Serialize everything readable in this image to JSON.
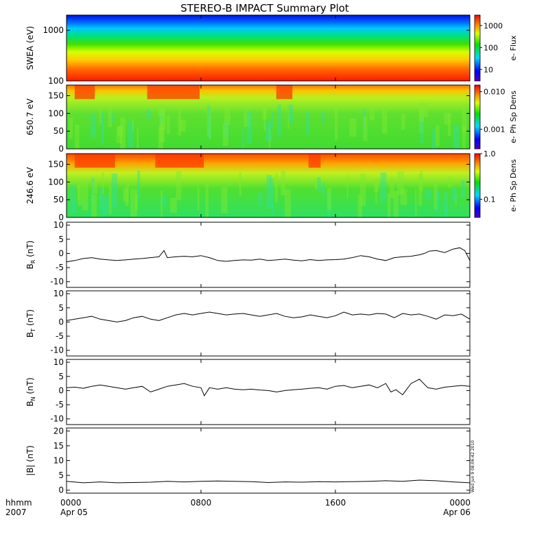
{
  "title": "STEREO-B IMPACT Summary Plot",
  "timestamp_stamp": "Wed Jun 9 08:06:42 2010",
  "x_axis": {
    "ticks": [
      {
        "hour": 0,
        "line1": "0000",
        "line2": "Apr 05"
      },
      {
        "hour": 8,
        "line1": "0800",
        "line2": ""
      },
      {
        "hour": 16,
        "line1": "1600",
        "line2": ""
      },
      {
        "hour": 24,
        "line1": "0000",
        "line2": "Apr 06"
      }
    ],
    "left_label_line1": "hhmm",
    "left_label_line2": "2007"
  },
  "chart_data": [
    {
      "id": "swea",
      "type": "heatmap",
      "ylabel": "SWEA (eV)",
      "yscale": "log",
      "ylim": [
        100,
        2000
      ],
      "yticks": [
        {
          "v": 100,
          "label": "100"
        },
        {
          "v": 1000,
          "label": "1000"
        }
      ],
      "colorbar": {
        "label": "e- Flux",
        "scale": "log",
        "range": [
          3,
          3000
        ],
        "ticks": [
          {
            "v": 10,
            "label": "10"
          },
          {
            "v": 100,
            "label": "100"
          },
          {
            "v": 1000,
            "label": "1000"
          }
        ]
      },
      "description_colors": "red at low energy to blue at high energy"
    },
    {
      "id": "pad650",
      "type": "heatmap",
      "ylabel": "650.7 eV",
      "ylim": [
        0,
        180
      ],
      "yticks": [
        {
          "v": 0,
          "label": "0"
        },
        {
          "v": 50,
          "label": "50"
        },
        {
          "v": 100,
          "label": "100"
        },
        {
          "v": 150,
          "label": "150"
        }
      ],
      "colorbar": {
        "label": "e- Ph Sp Dens",
        "scale": "log",
        "range": [
          0.0003,
          0.015
        ],
        "ticks": [
          {
            "v": 0.001,
            "label": "0.001"
          },
          {
            "v": 0.01,
            "label": "0.010"
          }
        ]
      }
    },
    {
      "id": "pad246",
      "type": "heatmap",
      "ylabel": "246.6 eV",
      "ylim": [
        0,
        180
      ],
      "yticks": [
        {
          "v": 0,
          "label": "0"
        },
        {
          "v": 50,
          "label": "50"
        },
        {
          "v": 100,
          "label": "100"
        },
        {
          "v": 150,
          "label": "150"
        }
      ],
      "colorbar": {
        "label": "e- Ph Sp Dens",
        "scale": "log",
        "range": [
          0.04,
          1.0
        ],
        "ticks": [
          {
            "v": 0.1,
            "label": "0.1"
          },
          {
            "v": 1.0,
            "label": "1.0"
          }
        ]
      }
    },
    {
      "id": "br",
      "type": "line",
      "ylabel": "B",
      "ysub": "R",
      "yunit": "(nT)",
      "ylim": [
        -12,
        11
      ],
      "yticks": [
        {
          "v": -10,
          "label": "-10"
        },
        {
          "v": -5,
          "label": "-5"
        },
        {
          "v": 0,
          "label": "0"
        },
        {
          "v": 5,
          "label": "5"
        },
        {
          "v": 10,
          "label": "10"
        }
      ],
      "x": [
        0,
        0.5,
        1,
        1.5,
        2,
        2.5,
        3,
        3.5,
        4,
        4.5,
        5,
        5.5,
        5.8,
        6,
        6.5,
        7,
        7.5,
        8,
        8.5,
        9,
        9.5,
        10,
        10.5,
        11,
        11.5,
        12,
        12.5,
        13,
        13.5,
        14,
        14.5,
        15,
        15.5,
        16,
        16.5,
        17,
        17.5,
        18,
        18.5,
        19,
        19.5,
        20,
        20.5,
        21,
        21.3,
        21.6,
        22,
        22.5,
        23,
        23.4,
        23.7,
        24
      ],
      "y": [
        -3,
        -2.5,
        -1.8,
        -1.5,
        -2,
        -2.3,
        -2.5,
        -2.3,
        -2,
        -1.8,
        -1.5,
        -1.2,
        1,
        -1.5,
        -1.2,
        -1,
        -1.2,
        -0.8,
        -1.5,
        -2.5,
        -2.8,
        -2.5,
        -2.3,
        -2.4,
        -2,
        -2.5,
        -2.3,
        -2,
        -2.4,
        -2.6,
        -2.2,
        -2.5,
        -2.3,
        -2.2,
        -2,
        -1.5,
        -0.8,
        -1.2,
        -2,
        -2.5,
        -1.5,
        -1.2,
        -1,
        -0.5,
        0,
        0.8,
        1,
        0.3,
        1.5,
        2,
        1,
        -2.5
      ]
    },
    {
      "id": "bt",
      "type": "line",
      "ylabel": "B",
      "ysub": "T",
      "yunit": "(nT)",
      "ylim": [
        -12,
        11
      ],
      "yticks": [
        {
          "v": -10,
          "label": "-10"
        },
        {
          "v": -5,
          "label": "-5"
        },
        {
          "v": 0,
          "label": "0"
        },
        {
          "v": 5,
          "label": "5"
        },
        {
          "v": 10,
          "label": "10"
        }
      ],
      "x": [
        0,
        0.5,
        1,
        1.5,
        2,
        2.5,
        3,
        3.5,
        4,
        4.5,
        5,
        5.5,
        6,
        6.5,
        7,
        7.5,
        8,
        8.5,
        9,
        9.5,
        10,
        10.5,
        11,
        11.5,
        12,
        12.5,
        13,
        13.5,
        14,
        14.5,
        15,
        15.5,
        16,
        16.5,
        17,
        17.5,
        18,
        18.5,
        19,
        19.5,
        20,
        20.5,
        21,
        21.5,
        22,
        22.5,
        23,
        23.5,
        24
      ],
      "y": [
        0.5,
        1,
        1.5,
        2,
        1,
        0.5,
        0,
        0.5,
        1.5,
        2,
        1,
        0.5,
        1.5,
        2.5,
        3,
        2.5,
        3,
        3.5,
        3,
        2.5,
        2.8,
        3,
        2.5,
        2,
        2.5,
        3,
        2,
        1.5,
        1.8,
        2.5,
        2,
        1.5,
        2.2,
        3.5,
        2.5,
        2.8,
        2.5,
        3,
        2.8,
        1.5,
        3,
        2.5,
        2.8,
        2,
        1,
        2.5,
        2.2,
        2.8,
        1
      ]
    },
    {
      "id": "bn",
      "type": "line",
      "ylabel": "B",
      "ysub": "N",
      "yunit": "(nT)",
      "ylim": [
        -12,
        11
      ],
      "yticks": [
        {
          "v": -10,
          "label": "-10"
        },
        {
          "v": -5,
          "label": "-5"
        },
        {
          "v": 0,
          "label": "0"
        },
        {
          "v": 5,
          "label": "5"
        },
        {
          "v": 10,
          "label": "10"
        }
      ],
      "x": [
        0,
        0.5,
        1,
        1.5,
        2,
        2.5,
        3,
        3.5,
        4,
        4.5,
        5,
        5.5,
        6,
        6.5,
        7,
        7.5,
        8,
        8.2,
        8.5,
        9,
        9.5,
        10,
        10.5,
        11,
        11.5,
        12,
        12.5,
        13,
        13.5,
        14,
        14.5,
        15,
        15.5,
        16,
        16.5,
        17,
        17.5,
        18,
        18.5,
        19,
        19.3,
        19.6,
        20,
        20.5,
        21,
        21.5,
        22,
        22.5,
        23,
        23.5,
        24
      ],
      "y": [
        1,
        1.2,
        0.8,
        1.5,
        2,
        1.5,
        1,
        0.5,
        1,
        1.5,
        -0.5,
        0.5,
        1.5,
        2,
        2.5,
        1.5,
        1,
        -1.8,
        1,
        0.5,
        1,
        0.5,
        0.3,
        0.5,
        0.2,
        0,
        -0.5,
        0,
        0.3,
        0.5,
        0.8,
        1,
        0.5,
        1.5,
        1.8,
        1,
        1.5,
        2,
        1,
        2.5,
        -0.5,
        0.3,
        -1.5,
        2.5,
        4,
        1,
        0.5,
        1.2,
        1.5,
        1.8,
        1.5
      ]
    },
    {
      "id": "bmag",
      "type": "line",
      "ylabel": "|B|",
      "yunit": "(nT)",
      "ylim": [
        -1,
        21
      ],
      "yticks": [
        {
          "v": 0,
          "label": "0"
        },
        {
          "v": 5,
          "label": "5"
        },
        {
          "v": 10,
          "label": "10"
        },
        {
          "v": 15,
          "label": "15"
        },
        {
          "v": 20,
          "label": "20"
        }
      ],
      "x": [
        0,
        1,
        2,
        3,
        4,
        5,
        6,
        7,
        8,
        9,
        10,
        11,
        12,
        13,
        14,
        15,
        16,
        17,
        18,
        19,
        20,
        21,
        22,
        23,
        24
      ],
      "y": [
        3,
        2.5,
        2.8,
        2.5,
        2.6,
        2.7,
        3,
        2.8,
        3,
        3.1,
        3,
        2.9,
        2.6,
        2.8,
        2.7,
        2.9,
        2.8,
        2.9,
        3,
        3.2,
        3,
        3.4,
        3.2,
        2.8,
        2.5
      ]
    }
  ]
}
